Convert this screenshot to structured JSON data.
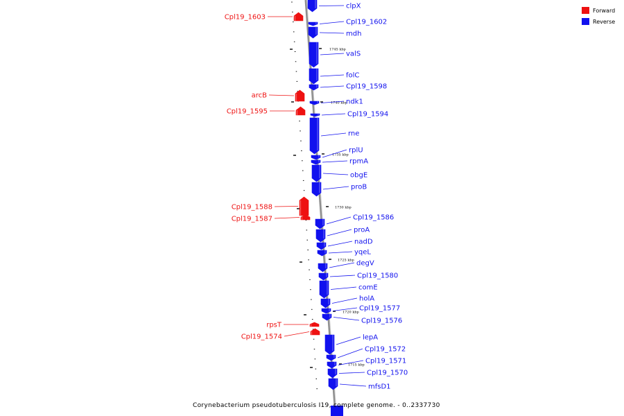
{
  "caption": "Corynebacterium pseudotuberculosis I19, complete genome. - 0..2337730",
  "colors": {
    "forward": "#ee1111",
    "reverse": "#1111ee",
    "backbone": "#909090"
  },
  "legend": [
    {
      "label": "Forward",
      "color": "#ee1111"
    },
    {
      "label": "Reverse",
      "color": "#1111ee"
    }
  ],
  "ticks": [
    {
      "label": "1745 kbp",
      "pos": 1745
    },
    {
      "label": "1740 kbp",
      "pos": 1740
    },
    {
      "label": "1735 kbp",
      "pos": 1735
    },
    {
      "label": "1730 kbp",
      "pos": 1730
    },
    {
      "label": "1725 kbp",
      "pos": 1725
    },
    {
      "label": "1720 kbp",
      "pos": 1720
    },
    {
      "label": "1715 kbp",
      "pos": 1715
    }
  ],
  "genes": [
    {
      "name": "clpX",
      "strand": "reverse"
    },
    {
      "name": "Cpl19_1603",
      "strand": "forward"
    },
    {
      "name": "Cpl19_1602",
      "strand": "reverse"
    },
    {
      "name": "mdh",
      "strand": "reverse"
    },
    {
      "name": "valS",
      "strand": "reverse"
    },
    {
      "name": "folC",
      "strand": "reverse"
    },
    {
      "name": "Cpl19_1598",
      "strand": "reverse"
    },
    {
      "name": "arcB",
      "strand": "forward"
    },
    {
      "name": "ndk1",
      "strand": "reverse"
    },
    {
      "name": "Cpl19_1595",
      "strand": "forward"
    },
    {
      "name": "Cpl19_1594",
      "strand": "reverse"
    },
    {
      "name": "rne",
      "strand": "reverse"
    },
    {
      "name": "rplU",
      "strand": "reverse"
    },
    {
      "name": "rpmA",
      "strand": "reverse"
    },
    {
      "name": "obgE",
      "strand": "reverse"
    },
    {
      "name": "proB",
      "strand": "reverse"
    },
    {
      "name": "Cpl19_1588",
      "strand": "forward"
    },
    {
      "name": "Cpl19_1587",
      "strand": "forward"
    },
    {
      "name": "Cpl19_1586",
      "strand": "reverse"
    },
    {
      "name": "proA",
      "strand": "reverse"
    },
    {
      "name": "nadD",
      "strand": "reverse"
    },
    {
      "name": "yqeL",
      "strand": "reverse"
    },
    {
      "name": "degV",
      "strand": "reverse"
    },
    {
      "name": "Cpl19_1580",
      "strand": "reverse"
    },
    {
      "name": "comE",
      "strand": "reverse"
    },
    {
      "name": "holA",
      "strand": "reverse"
    },
    {
      "name": "Cpl19_1577",
      "strand": "reverse"
    },
    {
      "name": "Cpl19_1576",
      "strand": "reverse"
    },
    {
      "name": "rpsT",
      "strand": "forward"
    },
    {
      "name": "Cpl19_1574",
      "strand": "forward"
    },
    {
      "name": "lepA",
      "strand": "reverse"
    },
    {
      "name": "Cpl19_1572",
      "strand": "reverse"
    },
    {
      "name": "Cpl19_1571",
      "strand": "reverse"
    },
    {
      "name": "Cpl19_1570",
      "strand": "reverse"
    },
    {
      "name": "mfsD1",
      "strand": "reverse"
    }
  ]
}
